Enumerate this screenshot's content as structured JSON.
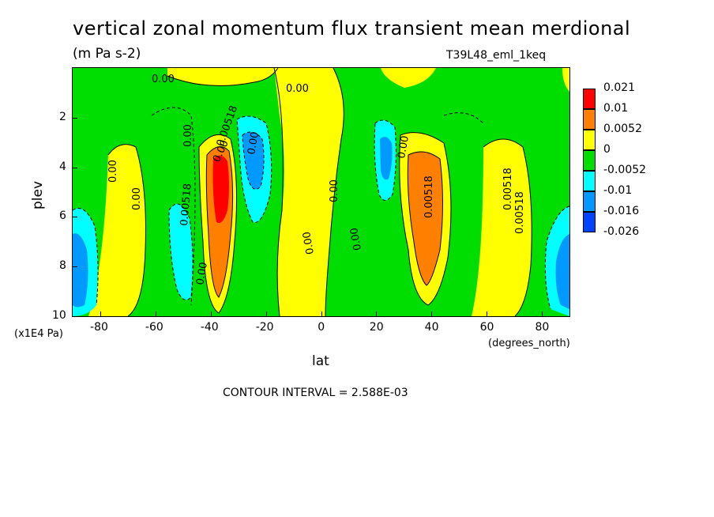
{
  "chart_data": {
    "type": "heatmap",
    "title": "vertical zonal momentum flux transient mean merdional",
    "units": "(m Pa s-2)",
    "run_label": "T39L48_eml_1keq",
    "xlabel": "lat",
    "x_units": "(degrees_north)",
    "ylabel": "plev",
    "y_units": "(x1E4 Pa)",
    "xlim": [
      -90,
      90
    ],
    "ylim": [
      10,
      0
    ],
    "x_ticks": [
      "-80",
      "-60",
      "-40",
      "-20",
      "0",
      "20",
      "40",
      "60",
      "80"
    ],
    "y_ticks": [
      "2",
      "4",
      "6",
      "8",
      "10"
    ],
    "contour_interval_text": "CONTOUR INTERVAL = 2.588E-03",
    "levels": [
      "0.021",
      "0.01",
      "0.0052",
      "0",
      "-0.0052",
      "-0.01",
      "-0.016",
      "-0.026"
    ],
    "level_colors": [
      "#ff0000",
      "#ff7f00",
      "#ffff00",
      "#00dd00",
      "#00ffff",
      "#0099ff",
      "#0044ff"
    ],
    "contour_labels": [
      "0.00",
      "0.00",
      "0.00",
      "0.00",
      "0.00",
      "0.00",
      "0.00",
      "0.00",
      "0.00",
      "0.00",
      "0.00",
      "0.00",
      "0.00518",
      "0.00518",
      "0.00518",
      "0.00518",
      "0.00518"
    ],
    "features": [
      {
        "name": "southern positive core",
        "lat": -36,
        "plev": 4.5,
        "value": 0.021
      },
      {
        "name": "southern negative lobe",
        "lat": -24,
        "plev": 4.0,
        "value": -0.016
      },
      {
        "name": "southern weak negative lobe",
        "lat": -46,
        "plev": 6.5,
        "value": -0.01
      },
      {
        "name": "northern positive core",
        "lat": 38,
        "plev": 5.0,
        "value": 0.01
      },
      {
        "name": "northern negative lobe",
        "lat": 24,
        "plev": 4.0,
        "value": -0.01
      },
      {
        "name": "south polar negative",
        "lat": -87,
        "plev": 8.0,
        "value": -0.016
      },
      {
        "name": "north polar negative",
        "lat": 87,
        "plev": 8.0,
        "value": -0.016
      }
    ]
  }
}
